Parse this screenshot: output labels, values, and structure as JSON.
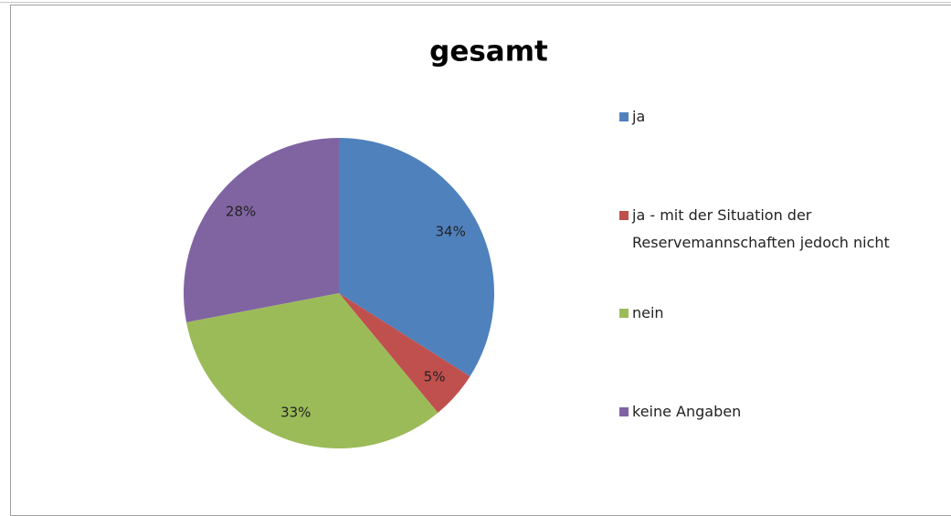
{
  "chart_data": {
    "type": "pie",
    "title": "gesamt",
    "categories": [
      "ja",
      "ja - mit der Situation der Reservemannschaften jedoch nicht",
      "nein",
      "keine Angaben"
    ],
    "values": [
      34,
      5,
      33,
      28
    ],
    "value_labels": [
      "34%",
      "5%",
      "33%",
      "28%"
    ],
    "colors": [
      "#4f81bd",
      "#c0504d",
      "#9bbb59",
      "#8064a2"
    ],
    "legend": "right"
  }
}
